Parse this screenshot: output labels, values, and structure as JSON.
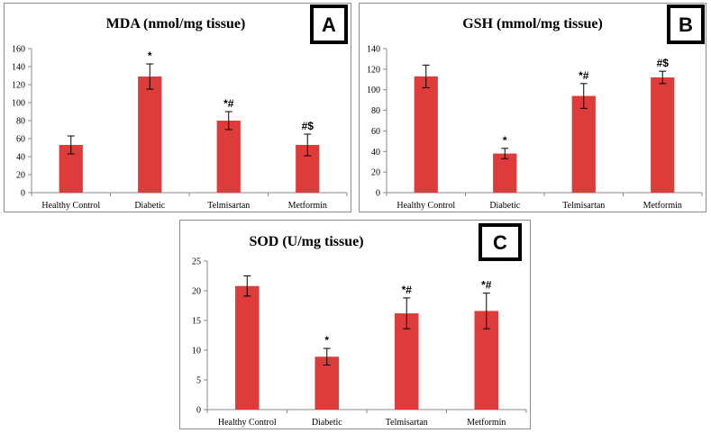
{
  "chart_data": [
    {
      "panel": "A",
      "type": "bar",
      "title": "MDA (nmol/mg   tissue)",
      "categories": [
        "Healthy Control",
        "Diabetic",
        "Telmisartan",
        "Metformin"
      ],
      "values": [
        53,
        129,
        80,
        53
      ],
      "errors": [
        10,
        14,
        10,
        12
      ],
      "significance": [
        "",
        "*",
        "*#",
        "#$"
      ],
      "ylim": [
        0,
        160
      ],
      "yticks": [
        0,
        20,
        40,
        60,
        80,
        100,
        120,
        140,
        160
      ],
      "xlabel": "",
      "ylabel": "",
      "color": "#dd3c3a"
    },
    {
      "panel": "B",
      "type": "bar",
      "title": "GSH (mmol/mg   tissue)",
      "categories": [
        "Healthy Control",
        "Diabetic",
        "Telmisartan",
        "Metformin"
      ],
      "values": [
        113,
        38,
        94,
        112
      ],
      "errors": [
        11,
        5,
        12,
        6
      ],
      "significance": [
        "",
        "*",
        "*#",
        "#$"
      ],
      "ylim": [
        0,
        140
      ],
      "yticks": [
        0,
        20,
        40,
        60,
        80,
        100,
        120,
        140
      ],
      "xlabel": "",
      "ylabel": "",
      "color": "#dd3c3a"
    },
    {
      "panel": "C",
      "type": "bar",
      "title": "SOD (U/mg    tissue)",
      "categories": [
        "Healthy Control",
        "Diabetic",
        "Telmisartan",
        "Metformin"
      ],
      "values": [
        20.8,
        8.9,
        16.2,
        16.6
      ],
      "errors": [
        1.7,
        1.4,
        2.6,
        3.0
      ],
      "significance": [
        "",
        "*",
        "*#",
        "*#"
      ],
      "ylim": [
        0,
        25
      ],
      "yticks": [
        0,
        5,
        10,
        15,
        20,
        25
      ],
      "xlabel": "",
      "ylabel": "",
      "color": "#dd3c3a"
    }
  ]
}
